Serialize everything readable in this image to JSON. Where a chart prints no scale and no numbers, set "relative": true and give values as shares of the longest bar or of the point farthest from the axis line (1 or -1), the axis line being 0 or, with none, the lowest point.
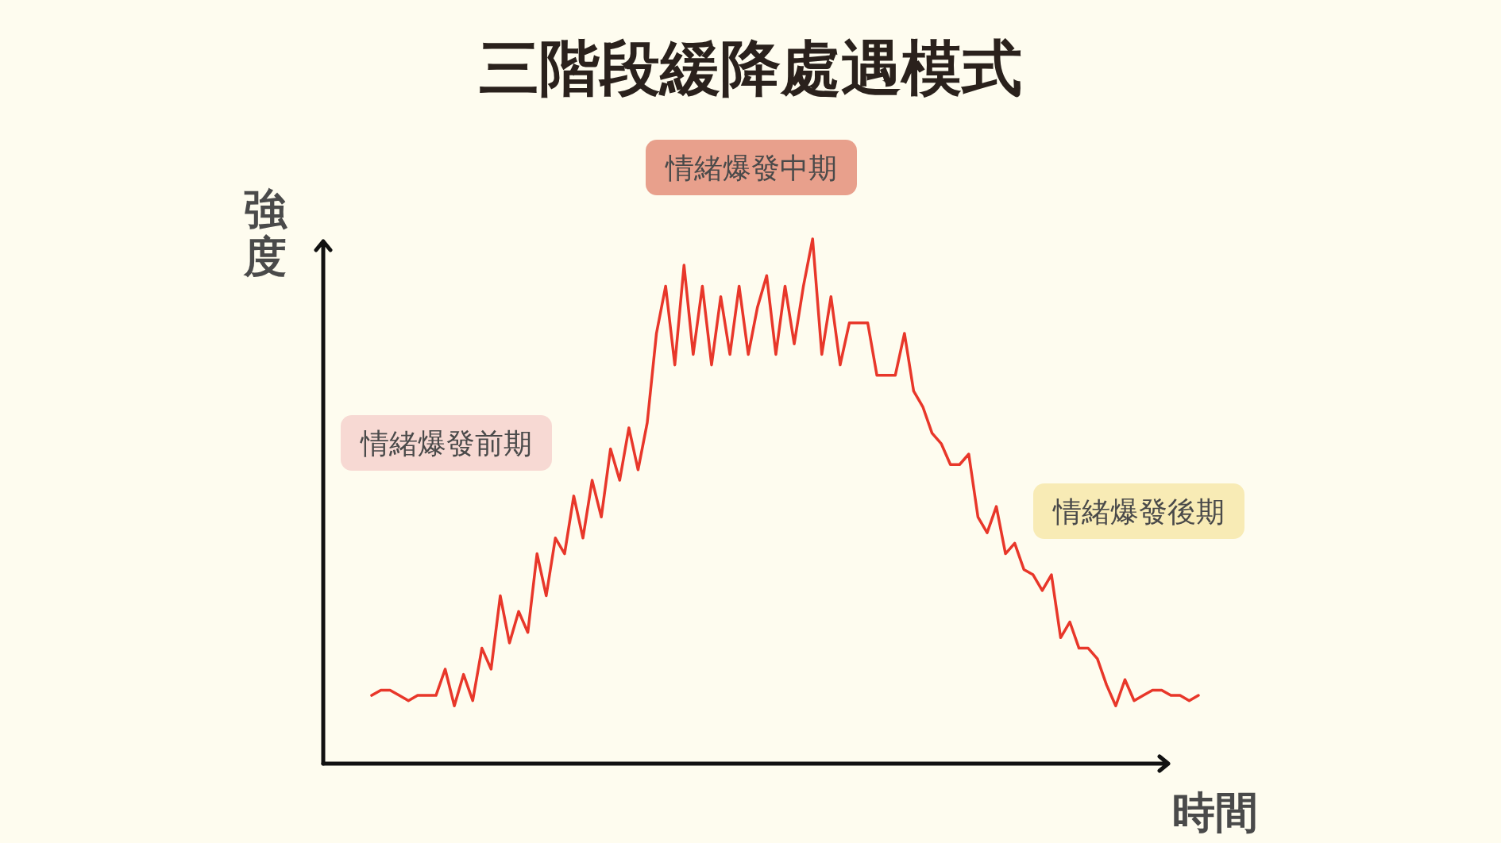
{
  "chart_data": {
    "type": "line",
    "title": "三階段緩降處遇模式",
    "xlabel": "時間",
    "ylabel": "強度",
    "relative": true,
    "annotations": [
      "情緒爆發前期",
      "情緒爆發中期",
      "情緒爆發後期"
    ],
    "categories": [
      null,
      null,
      null,
      null,
      null,
      null,
      null,
      null,
      null,
      null,
      null,
      null,
      null,
      null,
      null,
      null,
      null,
      null,
      null,
      null,
      null,
      null,
      null,
      null,
      null,
      null,
      null,
      null,
      null,
      null,
      null,
      null,
      null,
      null,
      null,
      null,
      null,
      null,
      null,
      null,
      null,
      null,
      null,
      null,
      null,
      null,
      null,
      null,
      null,
      null,
      null,
      null,
      null,
      null,
      null,
      null,
      null,
      null,
      null,
      null,
      null,
      null,
      null,
      null,
      null,
      null,
      null,
      null,
      null,
      null,
      null,
      null,
      null,
      null,
      null,
      null,
      null,
      null,
      null,
      null,
      null,
      null,
      null,
      null,
      null,
      null,
      null,
      null,
      null,
      null,
      null
    ],
    "series": [
      {
        "color": "#e8372a",
        "values": [
          0.13,
          0.14,
          0.14,
          0.13,
          0.12,
          0.13,
          0.13,
          0.13,
          0.18,
          0.11,
          0.17,
          0.12,
          0.22,
          0.18,
          0.32,
          0.23,
          0.29,
          0.25,
          0.4,
          0.32,
          0.43,
          0.4,
          0.51,
          0.43,
          0.54,
          0.47,
          0.6,
          0.54,
          0.64,
          0.56,
          0.65,
          0.82,
          0.91,
          0.76,
          0.95,
          0.78,
          0.91,
          0.76,
          0.89,
          0.78,
          0.91,
          0.78,
          0.87,
          0.93,
          0.78,
          0.91,
          0.8,
          0.91,
          1,
          0.78,
          0.89,
          0.76,
          0.84,
          0.84,
          0.84,
          0.74,
          0.74,
          0.74,
          0.82,
          0.71,
          0.68,
          0.63,
          0.61,
          0.57,
          0.57,
          0.59,
          0.47,
          0.44,
          0.49,
          0.4,
          0.42,
          0.37,
          0.36,
          0.33,
          0.36,
          0.24,
          0.27,
          0.22,
          0.22,
          0.2,
          0.15,
          0.11,
          0.16,
          0.12,
          0.13,
          0.14,
          0.14,
          0.13,
          0.13,
          0.12,
          0.13
        ]
      }
    ]
  }
}
